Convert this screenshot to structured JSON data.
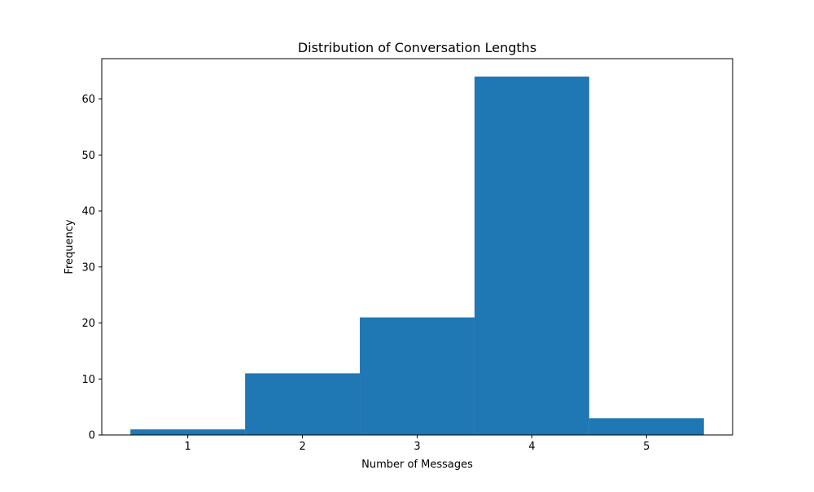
{
  "chart_data": {
    "type": "bar",
    "title": "Distribution of Conversation Lengths",
    "xlabel": "Number of Messages",
    "ylabel": "Frequency",
    "categories": [
      "1",
      "2",
      "3",
      "4",
      "5"
    ],
    "x": [
      1,
      2,
      3,
      4,
      5
    ],
    "values": [
      1,
      11,
      21,
      64,
      3
    ],
    "xlim": [
      0.25,
      5.75
    ],
    "ylim": [
      0,
      67.2
    ],
    "xticks": [
      1,
      2,
      3,
      4,
      5
    ],
    "yticks": [
      0,
      10,
      20,
      30,
      40,
      50,
      60
    ],
    "bar_color": "#1f77b4",
    "grid": false,
    "legend": "none"
  }
}
